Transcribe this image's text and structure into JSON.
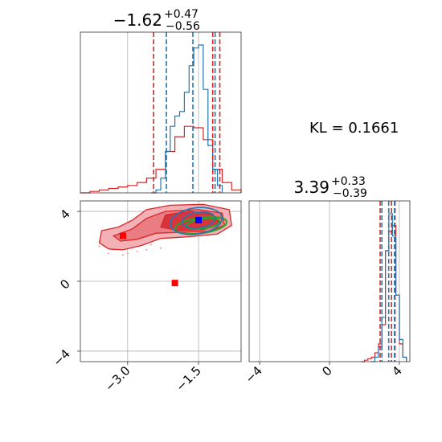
{
  "colors": {
    "blue": "#1f77b4",
    "red": "#d62728",
    "green": "#2ca02c",
    "grid": "#b0b0b0",
    "marker_red": "#ff0000",
    "marker_blue": "#0000ff"
  },
  "chart_data": {
    "type": "corner",
    "kl_text": "KL = 0.1661",
    "params": [
      {
        "title_main": "−1.62",
        "title_sup": "+0.47",
        "title_sub": "−0.56",
        "xlim": [
          -4.0,
          -0.6
        ],
        "blue_hist": {
          "x": [
            -2.5,
            -2.4,
            -2.3,
            -2.2,
            -2.1,
            -2.0,
            -1.9,
            -1.8,
            -1.7,
            -1.6,
            -1.5,
            -1.4,
            -1.3,
            -1.2,
            -1.1,
            -1.0
          ],
          "y": [
            0.0,
            0.02,
            0.1,
            0.28,
            0.45,
            0.52,
            0.55,
            0.68,
            0.86,
            0.98,
            1.0,
            0.7,
            0.32,
            0.16,
            0.05,
            0.0
          ]
        },
        "red_hist": {
          "x": [
            -4.0,
            -3.8,
            -3.6,
            -3.4,
            -3.2,
            -3.0,
            -2.8,
            -2.6,
            -2.4,
            -2.2,
            -2.0,
            -1.8,
            -1.6,
            -1.4,
            -1.2,
            -1.0,
            -0.8,
            -0.6
          ],
          "y": [
            0.0,
            0.01,
            0.02,
            0.03,
            0.04,
            0.05,
            0.07,
            0.1,
            0.16,
            0.28,
            0.38,
            0.45,
            0.44,
            0.36,
            0.16,
            0.07,
            0.02,
            0.0
          ]
        },
        "blue_quantiles": [
          -2.18,
          -1.62,
          -1.15
        ],
        "red_quantiles": [
          -2.45,
          -1.2,
          -1.05
        ]
      },
      {
        "title_main": "3.39",
        "title_sup": "+0.33",
        "title_sub": "−0.39",
        "xlim": [
          -4.6,
          4.6
        ],
        "xticks": [
          -4,
          0,
          4
        ],
        "blue_hist": {
          "x": [
            2.4,
            2.6,
            2.8,
            3.0,
            3.2,
            3.4,
            3.6,
            3.8,
            4.0,
            4.2,
            4.4
          ],
          "y": [
            0.0,
            0.03,
            0.1,
            0.3,
            0.75,
            1.0,
            0.85,
            0.45,
            0.15,
            0.03,
            0.0
          ]
        },
        "red_hist": {
          "x": [
            1.8,
            2.0,
            2.2,
            2.4,
            2.6,
            2.8,
            3.0,
            3.2,
            3.4,
            3.6,
            3.8,
            4.0,
            4.2,
            4.4
          ],
          "y": [
            0.0,
            0.01,
            0.02,
            0.03,
            0.06,
            0.12,
            0.25,
            0.75,
            0.88,
            0.92,
            0.45,
            0.12,
            0.03,
            0.0
          ]
        },
        "blue_quantiles": [
          3.0,
          3.39,
          3.72
        ],
        "red_quantiles": [
          2.9,
          3.55,
          3.75
        ]
      }
    ],
    "joint": {
      "xlim": [
        -4.0,
        -0.6
      ],
      "ylim": [
        -4.6,
        4.6
      ],
      "xticks": [
        -3.0,
        -1.5
      ],
      "xtick_labels": [
        "−3.0",
        "−1.5"
      ],
      "yticks": [
        4,
        0,
        -4
      ],
      "ytick_labels": [
        "4",
        "0",
        "−4"
      ],
      "red_marker_points": [
        [
          -3.1,
          2.6
        ],
        [
          -2.0,
          -0.1
        ]
      ],
      "blue_marker_point": [
        -1.5,
        3.5
      ],
      "red_scatter_points": [
        [
          -3.4,
          2.3
        ],
        [
          -3.3,
          1.8
        ],
        [
          -3.2,
          2.5
        ],
        [
          -2.9,
          2.0
        ],
        [
          -2.8,
          1.7
        ],
        [
          -3.5,
          2.7
        ],
        [
          -2.6,
          1.8
        ],
        [
          -3.0,
          1.6
        ],
        [
          -2.7,
          2.2
        ],
        [
          -3.3,
          3.0
        ],
        [
          -2.5,
          2.1
        ],
        [
          -3.6,
          2.0
        ],
        [
          -3.1,
          1.5
        ],
        [
          -2.4,
          2.4
        ],
        [
          -3.2,
          2.2
        ],
        [
          -2.9,
          2.6
        ],
        [
          -3.4,
          1.6
        ],
        [
          -2.6,
          2.5
        ],
        [
          -3.0,
          2.8
        ],
        [
          -2.3,
          1.9
        ]
      ],
      "blue_contours": [
        {
          "cx": -1.55,
          "cy": 3.45,
          "rx": 0.55,
          "ry": 0.75
        },
        {
          "cx": -1.5,
          "cy": 3.5,
          "rx": 0.35,
          "ry": 0.45
        }
      ],
      "green_contours": [
        {
          "cx": -1.45,
          "cy": 3.2,
          "rx": 0.55,
          "ry": 0.45
        },
        {
          "cx": -1.4,
          "cy": 3.3,
          "rx": 0.35,
          "ry": 0.28
        }
      ]
    }
  }
}
